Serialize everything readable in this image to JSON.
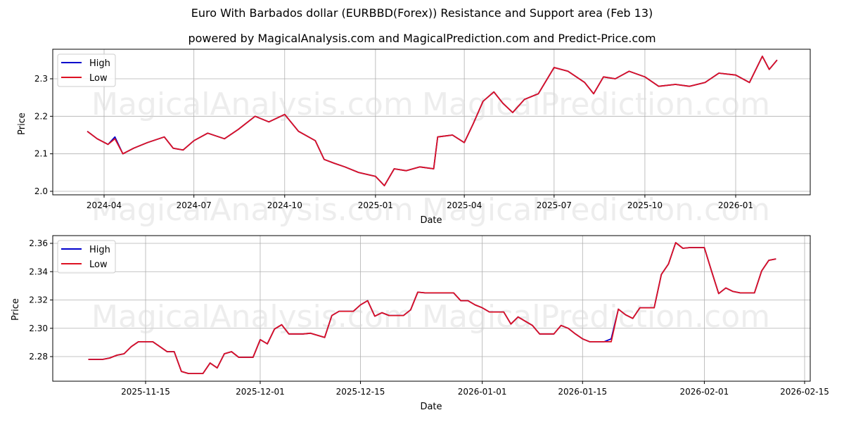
{
  "header": {
    "title": "Euro With Barbados dollar (EURBBD(Forex)) Resistance and Support area (Feb 13)",
    "subtitle": "powered by MagicalAnalysis.com and MagicalPrediction.com and Predict-Price.com"
  },
  "watermarks": [
    "MagicalAnalysis.com",
    "MagicalPrediction.com"
  ],
  "colors": {
    "high": "#0000cc",
    "low": "#dd1122",
    "grid": "#b0b0b0"
  },
  "chart_data": [
    {
      "type": "line",
      "title": "",
      "xlabel": "Date",
      "ylabel": "Price",
      "ylim": [
        1.99,
        2.38
      ],
      "yticks": [
        "2.0",
        "2.1",
        "2.2",
        "2.3"
      ],
      "xticks": [
        "2024-04",
        "2024-07",
        "2024-10",
        "2025-01",
        "2025-04",
        "2025-07",
        "2025-10",
        "2026-01"
      ],
      "grid": true,
      "legend": {
        "position": "upper left",
        "entries": [
          "High",
          "Low"
        ]
      },
      "x": [
        "2024-03-15",
        "2024-03-25",
        "2024-04-05",
        "2024-04-12",
        "2024-04-20",
        "2024-05-01",
        "2024-05-15",
        "2024-06-01",
        "2024-06-10",
        "2024-06-20",
        "2024-07-01",
        "2024-07-15",
        "2024-08-01",
        "2024-08-15",
        "2024-09-01",
        "2024-09-15",
        "2024-10-01",
        "2024-10-15",
        "2024-11-01",
        "2024-11-10",
        "2024-11-20",
        "2024-12-01",
        "2024-12-15",
        "2025-01-01",
        "2025-01-10",
        "2025-01-20",
        "2025-02-01",
        "2025-02-15",
        "2025-03-01",
        "2025-03-05",
        "2025-03-20",
        "2025-04-01",
        "2025-04-10",
        "2025-04-20",
        "2025-05-01",
        "2025-05-10",
        "2025-05-20",
        "2025-06-01",
        "2025-06-15",
        "2025-07-01",
        "2025-07-15",
        "2025-08-01",
        "2025-08-10",
        "2025-08-20",
        "2025-09-01",
        "2025-09-15",
        "2025-10-01",
        "2025-10-15",
        "2025-11-01",
        "2025-11-15",
        "2025-12-01",
        "2025-12-15",
        "2026-01-01",
        "2026-01-15",
        "2026-01-28",
        "2026-02-04",
        "2026-02-12"
      ],
      "series": [
        {
          "name": "High",
          "values": [
            2.16,
            2.14,
            2.125,
            2.145,
            2.1,
            2.115,
            2.13,
            2.145,
            2.115,
            2.11,
            2.135,
            2.155,
            2.14,
            2.165,
            2.2,
            2.185,
            2.205,
            2.16,
            2.135,
            2.085,
            2.075,
            2.065,
            2.05,
            2.04,
            2.015,
            2.06,
            2.055,
            2.065,
            2.06,
            2.145,
            2.15,
            2.13,
            2.18,
            2.24,
            2.265,
            2.235,
            2.21,
            2.245,
            2.26,
            2.33,
            2.32,
            2.29,
            2.26,
            2.305,
            2.3,
            2.32,
            2.305,
            2.28,
            2.285,
            2.28,
            2.29,
            2.315,
            2.31,
            2.29,
            2.36,
            2.325,
            2.35
          ]
        },
        {
          "name": "Low",
          "values": [
            2.16,
            2.14,
            2.125,
            2.14,
            2.1,
            2.115,
            2.13,
            2.145,
            2.115,
            2.11,
            2.135,
            2.155,
            2.14,
            2.165,
            2.2,
            2.185,
            2.205,
            2.16,
            2.135,
            2.085,
            2.075,
            2.065,
            2.05,
            2.04,
            2.015,
            2.06,
            2.055,
            2.065,
            2.06,
            2.145,
            2.15,
            2.13,
            2.18,
            2.24,
            2.265,
            2.235,
            2.21,
            2.245,
            2.26,
            2.33,
            2.32,
            2.29,
            2.26,
            2.305,
            2.3,
            2.32,
            2.305,
            2.28,
            2.285,
            2.28,
            2.29,
            2.315,
            2.31,
            2.29,
            2.36,
            2.325,
            2.35
          ]
        }
      ]
    },
    {
      "type": "line",
      "title": "",
      "xlabel": "Date",
      "ylabel": "Price",
      "ylim": [
        2.2625,
        2.3655
      ],
      "yticks": [
        "2.28",
        "2.30",
        "2.32",
        "2.34",
        "2.36"
      ],
      "xticks": [
        "2025-11-15",
        "2025-12-01",
        "2025-12-15",
        "2026-01-01",
        "2026-01-15",
        "2026-02-01",
        "2026-02-15"
      ],
      "grid": true,
      "legend": {
        "position": "upper left",
        "entries": [
          "High",
          "Low"
        ]
      },
      "x": [
        "2025-11-07",
        "2025-11-09",
        "2025-11-10",
        "2025-11-11",
        "2025-11-12",
        "2025-11-13",
        "2025-11-14",
        "2025-11-16",
        "2025-11-17",
        "2025-11-18",
        "2025-11-19",
        "2025-11-20",
        "2025-11-21",
        "2025-11-23",
        "2025-11-24",
        "2025-11-25",
        "2025-11-26",
        "2025-11-27",
        "2025-11-28",
        "2025-11-30",
        "2025-12-01",
        "2025-12-02",
        "2025-12-03",
        "2025-12-04",
        "2025-12-05",
        "2025-12-07",
        "2025-12-08",
        "2025-12-10",
        "2025-12-11",
        "2025-12-12",
        "2025-12-14",
        "2025-12-15",
        "2025-12-16",
        "2025-12-17",
        "2025-12-18",
        "2025-12-19",
        "2025-12-21",
        "2025-12-22",
        "2025-12-23",
        "2025-12-24",
        "2025-12-26",
        "2025-12-28",
        "2025-12-29",
        "2025-12-30",
        "2025-12-31",
        "2026-01-01",
        "2026-01-02",
        "2026-01-04",
        "2026-01-05",
        "2026-01-06",
        "2026-01-07",
        "2026-01-08",
        "2026-01-09",
        "2026-01-11",
        "2026-01-12",
        "2026-01-13",
        "2026-01-14",
        "2026-01-15",
        "2026-01-16",
        "2026-01-18",
        "2026-01-19",
        "2026-01-20",
        "2026-01-21",
        "2026-01-22",
        "2026-01-23",
        "2026-01-25",
        "2026-01-26",
        "2026-01-27",
        "2026-01-28",
        "2026-01-29",
        "2026-01-30",
        "2026-02-01",
        "2026-02-02",
        "2026-02-03",
        "2026-02-04",
        "2026-02-05",
        "2026-02-06",
        "2026-02-08",
        "2026-02-09",
        "2026-02-10",
        "2026-02-11"
      ],
      "series": [
        {
          "name": "High",
          "values": [
            2.278,
            2.278,
            2.279,
            2.281,
            2.282,
            2.287,
            2.2905,
            2.2905,
            2.287,
            2.2835,
            2.2835,
            2.2695,
            2.268,
            2.268,
            2.2755,
            2.272,
            2.282,
            2.2835,
            2.2795,
            2.2795,
            2.292,
            2.289,
            2.2995,
            2.3025,
            2.296,
            2.296,
            2.2965,
            2.2935,
            2.309,
            2.312,
            2.312,
            2.3165,
            2.3195,
            2.3085,
            2.311,
            2.309,
            2.309,
            2.313,
            2.3255,
            2.325,
            2.325,
            2.325,
            2.3195,
            2.3195,
            2.3165,
            2.3145,
            2.3115,
            2.3115,
            2.303,
            2.308,
            2.305,
            2.302,
            2.296,
            2.296,
            2.302,
            2.3,
            2.296,
            2.2925,
            2.2905,
            2.2905,
            2.2925,
            2.3135,
            2.3095,
            2.307,
            2.3145,
            2.3145,
            2.338,
            2.3455,
            2.3605,
            2.3565,
            2.357,
            2.357,
            2.3405,
            2.3245,
            2.3285,
            2.326,
            2.325,
            2.325,
            2.3405,
            2.348,
            2.349
          ]
        },
        {
          "name": "Low",
          "values": [
            2.278,
            2.278,
            2.279,
            2.281,
            2.282,
            2.287,
            2.2905,
            2.2905,
            2.287,
            2.2835,
            2.2835,
            2.2695,
            2.268,
            2.268,
            2.2755,
            2.272,
            2.282,
            2.2835,
            2.2795,
            2.2795,
            2.292,
            2.289,
            2.2995,
            2.3025,
            2.296,
            2.296,
            2.2965,
            2.2935,
            2.309,
            2.312,
            2.312,
            2.3165,
            2.3195,
            2.3085,
            2.311,
            2.309,
            2.309,
            2.313,
            2.3255,
            2.325,
            2.325,
            2.325,
            2.3195,
            2.3195,
            2.3165,
            2.3145,
            2.3115,
            2.3115,
            2.303,
            2.308,
            2.305,
            2.302,
            2.296,
            2.296,
            2.302,
            2.3,
            2.296,
            2.2925,
            2.2905,
            2.2905,
            2.2905,
            2.3135,
            2.3095,
            2.307,
            2.3145,
            2.3145,
            2.338,
            2.3455,
            2.3605,
            2.3565,
            2.357,
            2.357,
            2.3405,
            2.3245,
            2.3285,
            2.326,
            2.325,
            2.325,
            2.3405,
            2.348,
            2.349
          ]
        }
      ]
    }
  ]
}
